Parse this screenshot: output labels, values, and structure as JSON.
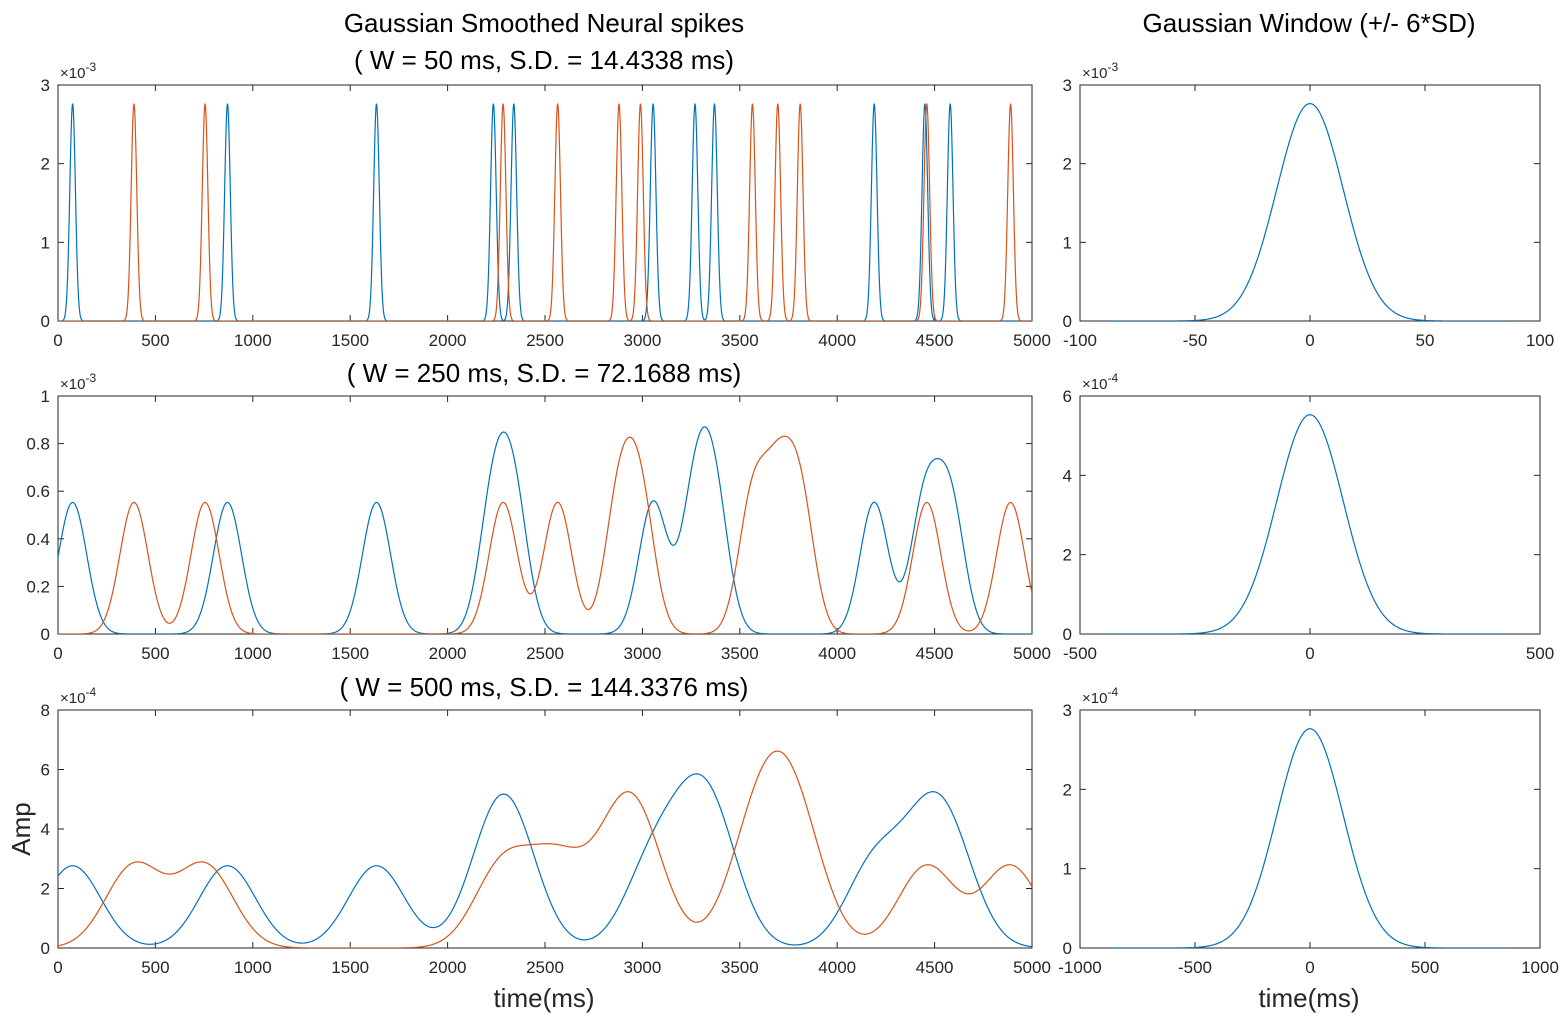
{
  "figure": {
    "main_title": "Gaussian Smoothed Neural spikes",
    "window_title": "Gaussian Window (+/- 6*SD)",
    "xlabel": "time(ms)",
    "ylabel": "Amp"
  },
  "colors": {
    "series_1": "#0072BD",
    "series_2": "#D95319",
    "axes": "#262626"
  },
  "chart_data": [
    {
      "type": "line",
      "title": "( W = 50 ms, S.D. = 14.4338 ms)",
      "sd": 14.4338,
      "xlim": [
        0,
        5000
      ],
      "ylim": [
        0,
        3
      ],
      "y_exponent": "-3",
      "x_ticks": [
        0,
        500,
        1000,
        1500,
        2000,
        2500,
        3000,
        3500,
        4000,
        4500,
        5000
      ],
      "y_ticks": [
        0,
        1,
        2,
        3
      ],
      "xlabel": "",
      "ylabel": "",
      "spike_peak": 2.764,
      "series": [
        {
          "spike_times": [
            75,
            870,
            1635,
            2235,
            2340,
            3055,
            3270,
            3370,
            4190,
            4450,
            4580
          ]
        },
        {
          "spike_times": [
            390,
            755,
            2285,
            2565,
            2880,
            2990,
            3565,
            3695,
            3810,
            4460,
            4890
          ]
        }
      ]
    },
    {
      "type": "line",
      "title": "",
      "sd": 14.4338,
      "xlim": [
        -100,
        100
      ],
      "ylim": [
        0,
        3
      ],
      "y_exponent": "-3",
      "x_ticks": [
        -100,
        -50,
        0,
        50,
        100
      ],
      "y_ticks": [
        0,
        1,
        2,
        3
      ],
      "window_range": [
        -86.6,
        86.6
      ],
      "peak": 2.764
    },
    {
      "type": "line",
      "title": "( W = 250 ms, S.D. = 72.1688 ms)",
      "sd": 72.1688,
      "xlim": [
        0,
        5000
      ],
      "ylim": [
        0,
        1
      ],
      "y_exponent": "-3",
      "x_ticks": [
        0,
        500,
        1000,
        1500,
        2000,
        2500,
        3000,
        3500,
        4000,
        4500,
        5000
      ],
      "y_ticks": [
        0,
        0.2,
        0.4,
        0.6,
        0.8,
        1
      ],
      "spike_peak": 0.5528,
      "series": [
        {
          "spike_times": [
            75,
            870,
            1635,
            2235,
            2340,
            3055,
            3270,
            3370,
            4190,
            4450,
            4580
          ]
        },
        {
          "spike_times": [
            390,
            755,
            2285,
            2565,
            2880,
            2990,
            3565,
            3695,
            3810,
            4460,
            4890
          ]
        }
      ]
    },
    {
      "type": "line",
      "title": "",
      "sd": 72.1688,
      "xlim": [
        -500,
        500
      ],
      "ylim": [
        0,
        6
      ],
      "y_exponent": "-4",
      "x_ticks": [
        -500,
        0,
        500
      ],
      "y_ticks": [
        0,
        2,
        4,
        6
      ],
      "window_range": [
        -433,
        433
      ],
      "peak": 5.528
    },
    {
      "type": "line",
      "title": "( W = 500 ms, S.D. = 144.3376 ms)",
      "sd": 144.3376,
      "xlim": [
        0,
        5000
      ],
      "ylim": [
        0,
        8
      ],
      "y_exponent": "-4",
      "x_ticks": [
        0,
        500,
        1000,
        1500,
        2000,
        2500,
        3000,
        3500,
        4000,
        4500,
        5000
      ],
      "y_ticks": [
        0,
        2,
        4,
        6,
        8
      ],
      "xlabel": "time(ms)",
      "ylabel": "Amp",
      "spike_peak": 2.764,
      "series": [
        {
          "spike_times": [
            75,
            870,
            1635,
            2235,
            2340,
            3055,
            3270,
            3370,
            4190,
            4450,
            4580
          ]
        },
        {
          "spike_times": [
            390,
            755,
            2285,
            2565,
            2880,
            2990,
            3565,
            3695,
            3810,
            4460,
            4890
          ]
        }
      ]
    },
    {
      "type": "line",
      "title": "",
      "sd": 144.3376,
      "xlim": [
        -1000,
        1000
      ],
      "ylim": [
        0,
        3
      ],
      "y_exponent": "-4",
      "x_ticks": [
        -1000,
        -500,
        0,
        500,
        1000
      ],
      "y_ticks": [
        0,
        1,
        2,
        3
      ],
      "xlabel": "time(ms)",
      "window_range": [
        -866,
        866
      ],
      "peak": 2.764
    }
  ]
}
